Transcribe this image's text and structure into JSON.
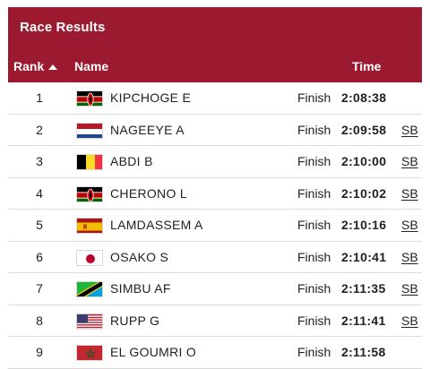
{
  "panel": {
    "title": "Race Results",
    "columns": {
      "rank": "Rank",
      "name": "Name",
      "time": "Time"
    }
  },
  "rows": [
    {
      "rank": "1",
      "name": "KIPCHOGE E",
      "flag": "kenya-flag",
      "status": "Finish",
      "time": "2:08:38",
      "badge": ""
    },
    {
      "rank": "2",
      "name": "NAGEEYE A",
      "flag": "netherlands-flag",
      "status": "Finish",
      "time": "2:09:58",
      "badge": "SB"
    },
    {
      "rank": "3",
      "name": "ABDI B",
      "flag": "belgium-flag",
      "status": "Finish",
      "time": "2:10:00",
      "badge": "SB"
    },
    {
      "rank": "4",
      "name": "CHERONO L",
      "flag": "kenya-flag",
      "status": "Finish",
      "time": "2:10:02",
      "badge": "SB"
    },
    {
      "rank": "5",
      "name": "LAMDASSEM A",
      "flag": "spain-flag",
      "status": "Finish",
      "time": "2:10:16",
      "badge": "SB"
    },
    {
      "rank": "6",
      "name": "OSAKO S",
      "flag": "japan-flag",
      "status": "Finish",
      "time": "2:10:41",
      "badge": "SB"
    },
    {
      "rank": "7",
      "name": "SIMBU AF",
      "flag": "tanzania-flag",
      "status": "Finish",
      "time": "2:11:35",
      "badge": "SB"
    },
    {
      "rank": "8",
      "name": "RUPP G",
      "flag": "usa-flag",
      "status": "Finish",
      "time": "2:11:41",
      "badge": "SB"
    },
    {
      "rank": "9",
      "name": "EL GOUMRI O",
      "flag": "morocco-flag",
      "status": "Finish",
      "time": "2:11:58",
      "badge": ""
    }
  ],
  "colors": {
    "header_bg": "#9b1a30",
    "header_text": "#ffffff",
    "row_border": "#dcdcdc",
    "text": "#222222"
  }
}
